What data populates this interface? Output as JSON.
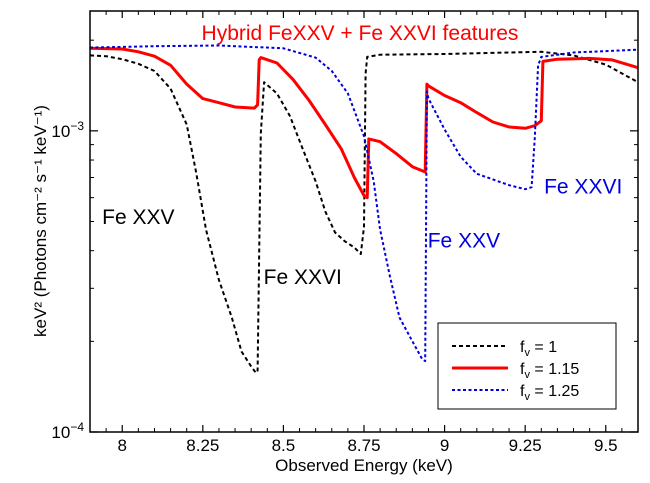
{
  "chart_data": {
    "type": "line",
    "title": "Hybrid FeXXV + Fe XXVI features",
    "title_color": "#ff0000",
    "xlabel": "Observed Energy (keV)",
    "ylabel": "keV² (Photons cm⁻² s⁻¹ keV⁻¹)",
    "xlim": [
      7.9,
      9.6
    ],
    "ylim": [
      0.0001,
      0.0025
    ],
    "yscale": "log",
    "grid": false,
    "legend_position": "bottom-right",
    "x_ticks": [
      {
        "value": 8,
        "label": "8"
      },
      {
        "value": 8.25,
        "label": "8.25"
      },
      {
        "value": 8.5,
        "label": "8.5"
      },
      {
        "value": 8.75,
        "label": "8.75"
      },
      {
        "value": 9,
        "label": "9"
      },
      {
        "value": 9.25,
        "label": "9.25"
      },
      {
        "value": 9.5,
        "label": "9.5"
      }
    ],
    "y_ticks": [
      {
        "value": 0.0001,
        "base": "10",
        "exp": "−4"
      },
      {
        "value": 0.001,
        "base": "10",
        "exp": "−3"
      }
    ],
    "series": [
      {
        "name": "fᵥ = 1",
        "legend_prefix": "f",
        "legend_sub": "v",
        "legend_suffix": " = 1",
        "color": "#000000",
        "dash": "4,3",
        "width": 2,
        "points": [
          [
            7.9,
            0.00178
          ],
          [
            7.95,
            0.00177
          ],
          [
            8.0,
            0.00173
          ],
          [
            8.05,
            0.00167
          ],
          [
            8.1,
            0.00158
          ],
          [
            8.15,
            0.00138
          ],
          [
            8.2,
            0.00105
          ],
          [
            8.23,
            0.00072
          ],
          [
            8.26,
            0.00047
          ],
          [
            8.3,
            0.00032
          ],
          [
            8.34,
            0.00024
          ],
          [
            8.37,
            0.000185
          ],
          [
            8.4,
            0.000165
          ],
          [
            8.415,
            0.000157
          ],
          [
            8.42,
            0.00016
          ],
          [
            8.43,
            0.00098
          ],
          [
            8.44,
            0.00145
          ],
          [
            8.48,
            0.00133
          ],
          [
            8.52,
            0.00112
          ],
          [
            8.56,
            0.00087
          ],
          [
            8.6,
            0.00068
          ],
          [
            8.63,
            0.00054
          ],
          [
            8.66,
            0.00046
          ],
          [
            8.69,
            0.00043
          ],
          [
            8.72,
            0.00041
          ],
          [
            8.74,
            0.00039
          ],
          [
            8.75,
            0.00048
          ],
          [
            8.755,
            0.00155
          ],
          [
            8.76,
            0.00176
          ],
          [
            8.8,
            0.00179
          ],
          [
            9.0,
            0.0018
          ],
          [
            9.2,
            0.00182
          ],
          [
            9.3,
            0.00183
          ],
          [
            9.4,
            0.00178
          ],
          [
            9.5,
            0.00166
          ],
          [
            9.6,
            0.00145
          ]
        ]
      },
      {
        "name": "fᵥ = 1.15",
        "legend_prefix": "f",
        "legend_sub": "v",
        "legend_suffix": " = 1.15",
        "color": "#ff0000",
        "dash": "",
        "width": 3,
        "points": [
          [
            7.9,
            0.00188
          ],
          [
            8.0,
            0.00187
          ],
          [
            8.05,
            0.00183
          ],
          [
            8.1,
            0.00177
          ],
          [
            8.15,
            0.00165
          ],
          [
            8.2,
            0.00143
          ],
          [
            8.25,
            0.00128
          ],
          [
            8.3,
            0.00124
          ],
          [
            8.35,
            0.0012
          ],
          [
            8.41,
            0.00119
          ],
          [
            8.42,
            0.00122
          ],
          [
            8.425,
            0.00172
          ],
          [
            8.43,
            0.00175
          ],
          [
            8.48,
            0.00168
          ],
          [
            8.53,
            0.00148
          ],
          [
            8.58,
            0.00126
          ],
          [
            8.63,
            0.00105
          ],
          [
            8.68,
            0.00087
          ],
          [
            8.72,
            0.0007
          ],
          [
            8.75,
            0.00061
          ],
          [
            8.76,
            0.0006
          ],
          [
            8.765,
            0.00094
          ],
          [
            8.8,
            0.00092
          ],
          [
            8.85,
            0.00084
          ],
          [
            8.9,
            0.00076
          ],
          [
            8.94,
            0.00073
          ],
          [
            8.945,
            0.00143
          ],
          [
            8.95,
            0.00141
          ],
          [
            9.0,
            0.00131
          ],
          [
            9.05,
            0.00124
          ],
          [
            9.1,
            0.00115
          ],
          [
            9.15,
            0.00107
          ],
          [
            9.2,
            0.00103
          ],
          [
            9.25,
            0.00102
          ],
          [
            9.28,
            0.00104
          ],
          [
            9.3,
            0.00108
          ],
          [
            9.305,
            0.0017
          ],
          [
            9.35,
            0.00173
          ],
          [
            9.45,
            0.00174
          ],
          [
            9.52,
            0.00172
          ],
          [
            9.6,
            0.00162
          ]
        ]
      },
      {
        "name": "fᵥ = 1.25",
        "legend_prefix": "f",
        "legend_sub": "v",
        "legend_suffix": " = 1.25",
        "color": "#0000dd",
        "dash": "3,2.5",
        "width": 2,
        "points": [
          [
            7.9,
            0.00189
          ],
          [
            8.1,
            0.00191
          ],
          [
            8.3,
            0.00192
          ],
          [
            8.5,
            0.00188
          ],
          [
            8.6,
            0.00175
          ],
          [
            8.65,
            0.00158
          ],
          [
            8.7,
            0.00133
          ],
          [
            8.75,
            0.00096
          ],
          [
            8.78,
            0.00068
          ],
          [
            8.8,
            0.00047
          ],
          [
            8.83,
            0.00033
          ],
          [
            8.86,
            0.00024
          ],
          [
            8.9,
            0.0002
          ],
          [
            8.93,
            0.000175
          ],
          [
            8.94,
            0.000172
          ],
          [
            8.945,
            0.00135
          ],
          [
            8.95,
            0.00128
          ],
          [
            9.0,
            0.00101
          ],
          [
            9.05,
            0.00082
          ],
          [
            9.1,
            0.00072
          ],
          [
            9.15,
            0.00069
          ],
          [
            9.2,
            0.00066
          ],
          [
            9.25,
            0.00064
          ],
          [
            9.27,
            0.00065
          ],
          [
            9.28,
            0.00095
          ],
          [
            9.29,
            0.00165
          ],
          [
            9.3,
            0.00176
          ],
          [
            9.4,
            0.00182
          ],
          [
            9.5,
            0.00184
          ],
          [
            9.6,
            0.00186
          ]
        ]
      }
    ],
    "annotations": [
      {
        "text": "Fe XXV",
        "x": 8.05,
        "y": 0.00049,
        "color": "#000000"
      },
      {
        "text": "Fe XXVI",
        "x": 8.56,
        "y": 0.00031,
        "color": "#000000"
      },
      {
        "text": "Fe XXV",
        "x": 9.06,
        "y": 0.00041,
        "color": "#0000dd"
      },
      {
        "text": "Fe XXVI",
        "x": 9.43,
        "y": 0.00062,
        "color": "#0000dd"
      }
    ]
  }
}
